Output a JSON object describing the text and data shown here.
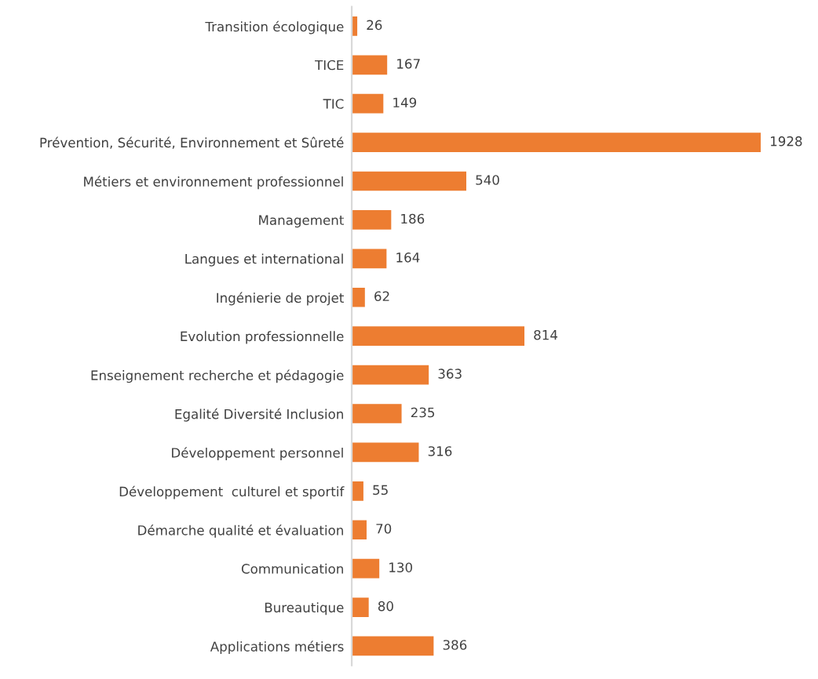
{
  "chart_data": {
    "type": "bar",
    "orientation": "horizontal",
    "categories": [
      "Transition écologique",
      "TICE",
      "TIC",
      "Prévention, Sécurité, Environnement et Sûreté",
      "Métiers et environnement professionnel",
      "Management",
      "Langues et international",
      "Ingénierie de projet",
      "Evolution professionnelle",
      "Enseignement recherche et pédagogie",
      "Egalité Diversité Inclusion",
      "Développement personnel",
      "Développement  culturel et sportif",
      "Démarche qualité et évaluation",
      "Communication",
      "Bureautique",
      "Applications métiers"
    ],
    "values": [
      26,
      167,
      149,
      1928,
      540,
      186,
      164,
      62,
      814,
      363,
      235,
      316,
      55,
      70,
      130,
      80,
      386
    ],
    "color": "#ed7d31",
    "data_labels": true,
    "tick_labels": "y",
    "grid": false,
    "legend": false
  }
}
